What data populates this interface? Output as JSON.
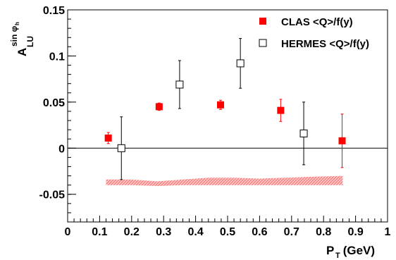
{
  "chart_data": {
    "type": "scatter",
    "xlabel": {
      "main": "P",
      "sub": "T",
      "rest": " (GeV)"
    },
    "ylabel": {
      "main": "A",
      "sub": "LU",
      "sup": "sin φ",
      "supsub": "h"
    },
    "xlim": [
      0,
      1
    ],
    "ylim": [
      -0.08,
      0.15
    ],
    "xticks": [
      0,
      0.1,
      0.2,
      0.3,
      0.4,
      0.5,
      0.6,
      0.7,
      0.8,
      0.9,
      1
    ],
    "xtick_labels": [
      "0",
      "0.1",
      "0.2",
      "0.3",
      "0.4",
      "0.5",
      "0.6",
      "0.7",
      "0.8",
      "0.9",
      "1"
    ],
    "yticks": [
      -0.05,
      0,
      0.05,
      0.1,
      0.15
    ],
    "ytick_labels": [
      "-0.05",
      "0",
      "0.05",
      "0.1",
      "0.15"
    ],
    "grid": false,
    "legend_position": "top-right",
    "series": [
      {
        "name": "CLAS <Q>/f(y)",
        "marker": "filled-square",
        "color": "#ff0000",
        "points": [
          {
            "x": 0.127,
            "y": 0.011,
            "err": 0.006
          },
          {
            "x": 0.286,
            "y": 0.045,
            "err": 0.004
          },
          {
            "x": 0.478,
            "y": 0.047,
            "err": 0.005
          },
          {
            "x": 0.666,
            "y": 0.041,
            "err": 0.012
          },
          {
            "x": 0.858,
            "y": 0.008,
            "err": 0.029
          }
        ]
      },
      {
        "name": "HERMES <Q>/f(y)",
        "marker": "open-square",
        "color": "#000000",
        "points": [
          {
            "x": 0.168,
            "y": 0.0,
            "err": 0.034
          },
          {
            "x": 0.35,
            "y": 0.069,
            "err": 0.026
          },
          {
            "x": 0.54,
            "y": 0.092,
            "err": 0.027
          },
          {
            "x": 0.738,
            "y": 0.016,
            "err": 0.034
          }
        ]
      }
    ],
    "systematic_band": {
      "color": "#ff6a6a",
      "x": [
        0.12,
        0.2,
        0.28,
        0.36,
        0.44,
        0.52,
        0.6,
        0.68,
        0.76,
        0.86
      ],
      "upper": [
        -0.034,
        -0.034,
        -0.036,
        -0.034,
        -0.032,
        -0.032,
        -0.033,
        -0.032,
        -0.031,
        -0.03
      ],
      "lower": [
        -0.04,
        -0.04,
        -0.041,
        -0.04,
        -0.04,
        -0.04,
        -0.04,
        -0.04,
        -0.04,
        -0.04
      ]
    }
  }
}
